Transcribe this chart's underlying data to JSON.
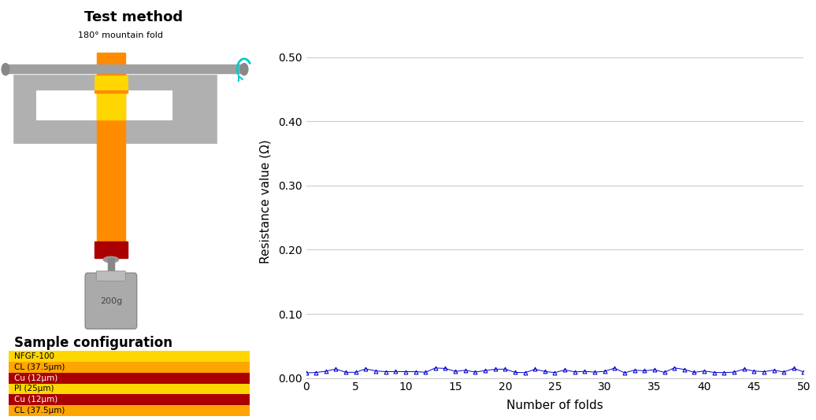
{
  "title_left": "Test method",
  "subtitle_left": "180° mountain fold",
  "sample_config_title": "Sample configuration",
  "layers": [
    {
      "label": "NFGF-100",
      "color": "#FFD700"
    },
    {
      "label": "CL (37.5μm)",
      "color": "#FFA500"
    },
    {
      "label": "Cu (12μm)",
      "color": "#AA0000"
    },
    {
      "label": "PI (25μm)",
      "color": "#FFD700"
    },
    {
      "label": "Cu (12μm)",
      "color": "#AA0000"
    },
    {
      "label": "CL (37.5μm)",
      "color": "#FFA500"
    }
  ],
  "weight_label": "200g",
  "graph_xlabel": "Number of folds",
  "graph_ylabel": "Resistance value (Ω)",
  "ylim": [
    0.0,
    0.55
  ],
  "yticks": [
    0.0,
    0.1,
    0.2,
    0.3,
    0.4,
    0.5
  ],
  "xlim": [
    0,
    50
  ],
  "xticks": [
    0,
    5,
    10,
    15,
    20,
    25,
    30,
    35,
    40,
    45,
    50
  ],
  "data_color": "#0000CC",
  "data_base": 0.008,
  "data_noise": 0.004,
  "n_points": 51,
  "background_color": "#FFFFFF",
  "platform_color": "#B0B0B0",
  "platform_edge": "#888888",
  "orange_color": "#FF8C00",
  "yellow_color": "#FFD700",
  "darkred_color": "#AA0000",
  "rod_color": "#A0A0A0",
  "weight_color": "#AAAAAA",
  "cyan_color": "#00CCCC"
}
